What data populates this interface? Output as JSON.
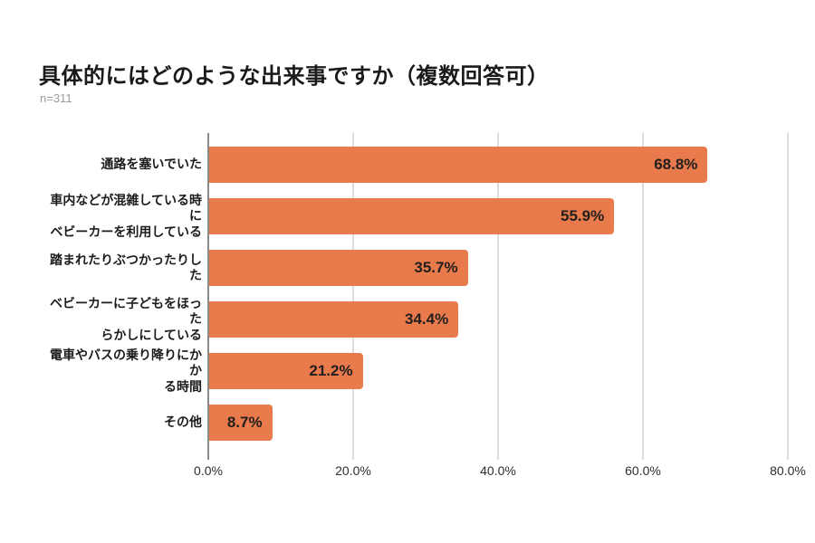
{
  "chart_data": {
    "type": "bar",
    "orientation": "horizontal",
    "title": "具体的にはどのような出来事ですか（複数回答可）",
    "subtitle": "n=311",
    "categories": [
      "通路を塞いでいた",
      "車内などが混雑している時に\nベビーカーを利用している",
      "踏まれたりぶつかったりした",
      "ベビーカーに子どもをほった\nらかしにしている",
      "電車やバスの乗り降りにかか\nる時間",
      "その他"
    ],
    "values": [
      68.8,
      55.9,
      35.7,
      34.4,
      21.2,
      8.7
    ],
    "value_labels": [
      "68.8%",
      "55.9%",
      "35.7%",
      "34.4%",
      "21.2%",
      "8.7%"
    ],
    "xlabel": "",
    "ylabel": "",
    "xlim": [
      0,
      80
    ],
    "x_ticks": [
      "0.0%",
      "20.0%",
      "40.0%",
      "60.0%",
      "80.0%"
    ],
    "grid": true,
    "legend": false,
    "bar_color": "#e87a4b",
    "axis_line_color": "#8a8a8a",
    "gridline_color": "#dcdcdc"
  }
}
